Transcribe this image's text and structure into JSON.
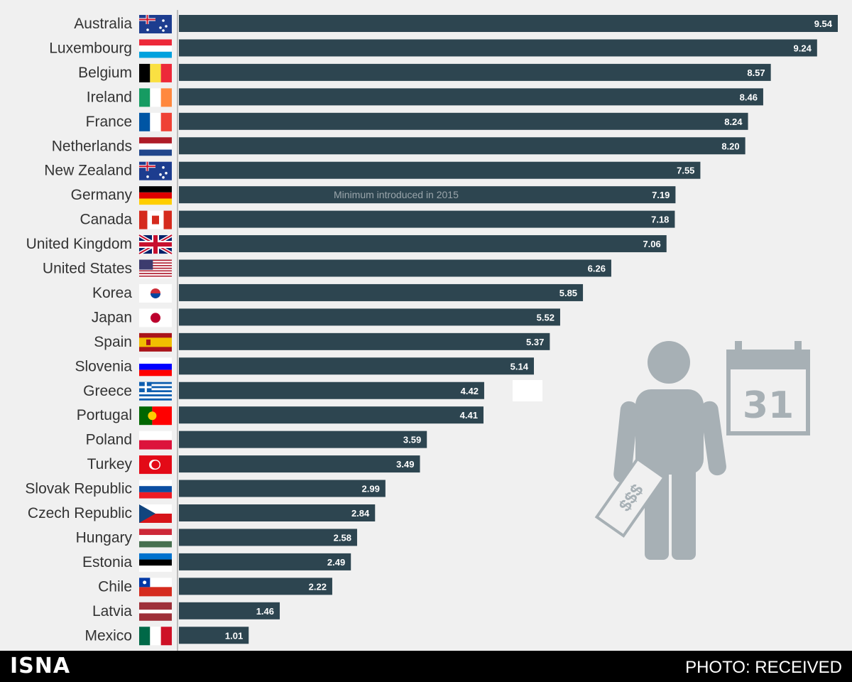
{
  "chart_data": {
    "type": "bar",
    "orientation": "horizontal",
    "categories": [
      "Australia",
      "Luxembourg",
      "Belgium",
      "Ireland",
      "France",
      "Netherlands",
      "New Zealand",
      "Germany",
      "Canada",
      "United Kingdom",
      "United States",
      "Korea",
      "Japan",
      "Spain",
      "Slovenia",
      "Greece",
      "Portugal",
      "Poland",
      "Turkey",
      "Slovak Republic",
      "Czech Republic",
      "Hungary",
      "Estonia",
      "Chile",
      "Latvia",
      "Mexico"
    ],
    "values": [
      9.54,
      9.24,
      8.57,
      8.46,
      8.24,
      8.2,
      7.55,
      7.19,
      7.18,
      7.06,
      6.26,
      5.85,
      5.52,
      5.37,
      5.14,
      4.42,
      4.41,
      3.59,
      3.49,
      2.99,
      2.84,
      2.58,
      2.49,
      2.22,
      1.46,
      1.01
    ],
    "value_labels": [
      "9.54",
      "9.24",
      "8.57",
      "8.46",
      "8.24",
      "8.20",
      "7.55",
      "7.19",
      "7.18",
      "7.06",
      "6.26",
      "5.85",
      "5.52",
      "5.37",
      "5.14",
      "4.42",
      "4.41",
      "3.59",
      "3.49",
      "2.99",
      "2.84",
      "2.58",
      "2.49",
      "2.22",
      "1.46",
      "1.01"
    ],
    "annotations": [
      {
        "category": "Germany",
        "text": "Minimum introduced in 2015"
      }
    ],
    "bar_color": "#2d4550",
    "xlim": [
      0,
      9.54
    ]
  },
  "illustration": {
    "calendar_number": "31",
    "banknote_text": "$$$"
  },
  "footer": {
    "brand": "ISNA",
    "credit": "PHOTO: RECEIVED"
  }
}
